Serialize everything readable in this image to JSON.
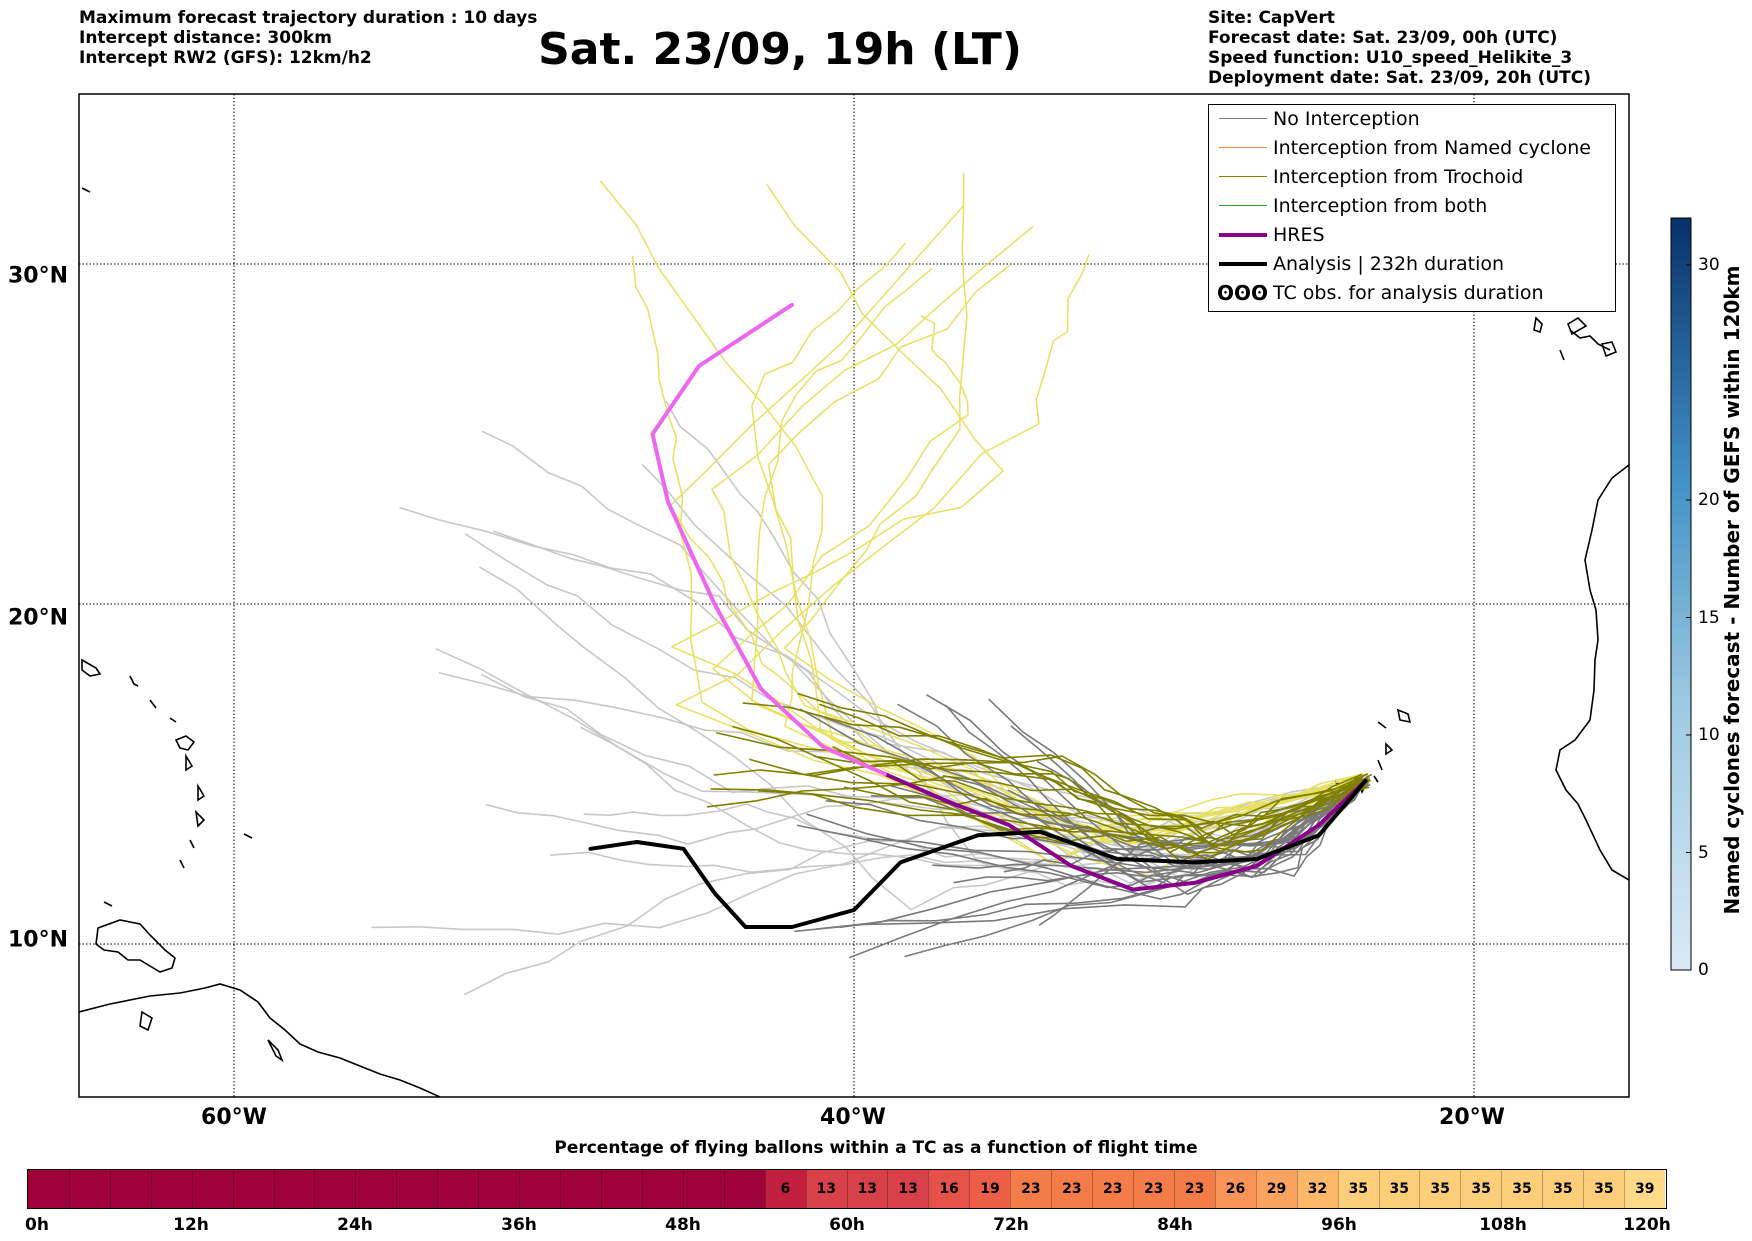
{
  "header_left": {
    "line1": "Maximum forecast trajectory duration : 10 days",
    "line2": "Intercept distance: 300km",
    "line3": "Intercept RW2 (GFS):  12km/h2"
  },
  "title": "Sat. 23/09, 19h (LT)",
  "header_right": {
    "line1": "Site: CapVert",
    "line2": "Forecast date: Sat. 23/09, 00h (UTC)",
    "line3": "Speed function: U10_speed_Helikite_3",
    "line4": "Deployment date: Sat. 23/09, 20h (UTC)"
  },
  "map": {
    "lon_range": [
      -65,
      -15
    ],
    "lat_range": [
      5.5,
      35
    ],
    "lat_ticks": [
      {
        "value": 30,
        "label": "30°N"
      },
      {
        "value": 20,
        "label": "20°N"
      },
      {
        "value": 10,
        "label": "10°N"
      }
    ],
    "lon_ticks": [
      {
        "value": -60,
        "label": "60°W"
      },
      {
        "value": -40,
        "label": "40°W"
      },
      {
        "value": -20,
        "label": "20°W"
      }
    ],
    "launch_site": {
      "lon": -23.5,
      "lat": 14.8
    },
    "hres_track": [
      [
        -23.5,
        14.8
      ],
      [
        -25,
        13.5
      ],
      [
        -27,
        12.3
      ],
      [
        -29,
        11.8
      ],
      [
        -31,
        11.6
      ],
      [
        -33,
        12.3
      ],
      [
        -35,
        13.5
      ],
      [
        -37,
        14.2
      ],
      [
        -39,
        15
      ],
      [
        -41,
        15.8
      ],
      [
        -43,
        17.5
      ],
      [
        -44.5,
        20
      ],
      [
        -46,
        23
      ],
      [
        -46.5,
        25
      ],
      [
        -45,
        27
      ],
      [
        -42,
        28.8
      ]
    ],
    "analysis_track": [
      [
        -23.5,
        14.8
      ],
      [
        -25,
        13.2
      ],
      [
        -27,
        12.5
      ],
      [
        -29,
        12.4
      ],
      [
        -31.5,
        12.5
      ],
      [
        -34,
        13.3
      ],
      [
        -36,
        13.2
      ],
      [
        -38.5,
        12.4
      ],
      [
        -40,
        11
      ],
      [
        -42,
        10.5
      ],
      [
        -43.5,
        10.5
      ],
      [
        -44.5,
        11.5
      ],
      [
        -45.5,
        12.8
      ],
      [
        -47,
        13
      ],
      [
        -48.5,
        12.8
      ]
    ],
    "colors": {
      "no_interception": "#7a7a7a",
      "no_interception_light": "#c8c8c8",
      "named_cyclone": "#ff7f50",
      "trochoid": "#808000",
      "trochoid_light": "#e8e060",
      "both": "#2ca02c",
      "hres": "#8b008b",
      "hres_light": "#ee66ee",
      "analysis": "#000000"
    }
  },
  "legend": [
    {
      "label": "No Interception",
      "color": "#7a7a7a",
      "width": 1.5,
      "type": "line"
    },
    {
      "label": "Interception from Named cyclone",
      "color": "#ff7f50",
      "width": 1.5,
      "type": "line"
    },
    {
      "label": "Interception from Trochoid",
      "color": "#808000",
      "width": 1.5,
      "type": "line"
    },
    {
      "label": "Interception from both",
      "color": "#2ca02c",
      "width": 1.5,
      "type": "line"
    },
    {
      "label": "HRES",
      "color": "#8b008b",
      "width": 4,
      "type": "line"
    },
    {
      "label": "Analysis | 232h duration",
      "color": "#000000",
      "width": 4,
      "type": "line"
    },
    {
      "label": "TC obs. for analysis duration",
      "symbol": "ʘʘʘ",
      "type": "symbol"
    }
  ],
  "colorbar": {
    "label": "Named cyclones forecast - Number of GEFS within 120km",
    "range": [
      0,
      32
    ],
    "ticks": [
      0,
      5,
      10,
      15,
      20,
      30
    ]
  },
  "flight_strip": {
    "title": "Percentage of flying ballons within a TC as a function of flight time",
    "time_labels": [
      "0h",
      "12h",
      "24h",
      "36h",
      "48h",
      "60h",
      "72h",
      "84h",
      "96h",
      "108h",
      "120h"
    ],
    "segment_hours": 3,
    "values": [
      0,
      0,
      0,
      0,
      0,
      0,
      0,
      0,
      0,
      0,
      0,
      0,
      0,
      0,
      0,
      0,
      0,
      0,
      6,
      13,
      13,
      13,
      16,
      19,
      23,
      23,
      23,
      23,
      23,
      26,
      29,
      32,
      35,
      35,
      35,
      35,
      35,
      35,
      35,
      39
    ]
  }
}
